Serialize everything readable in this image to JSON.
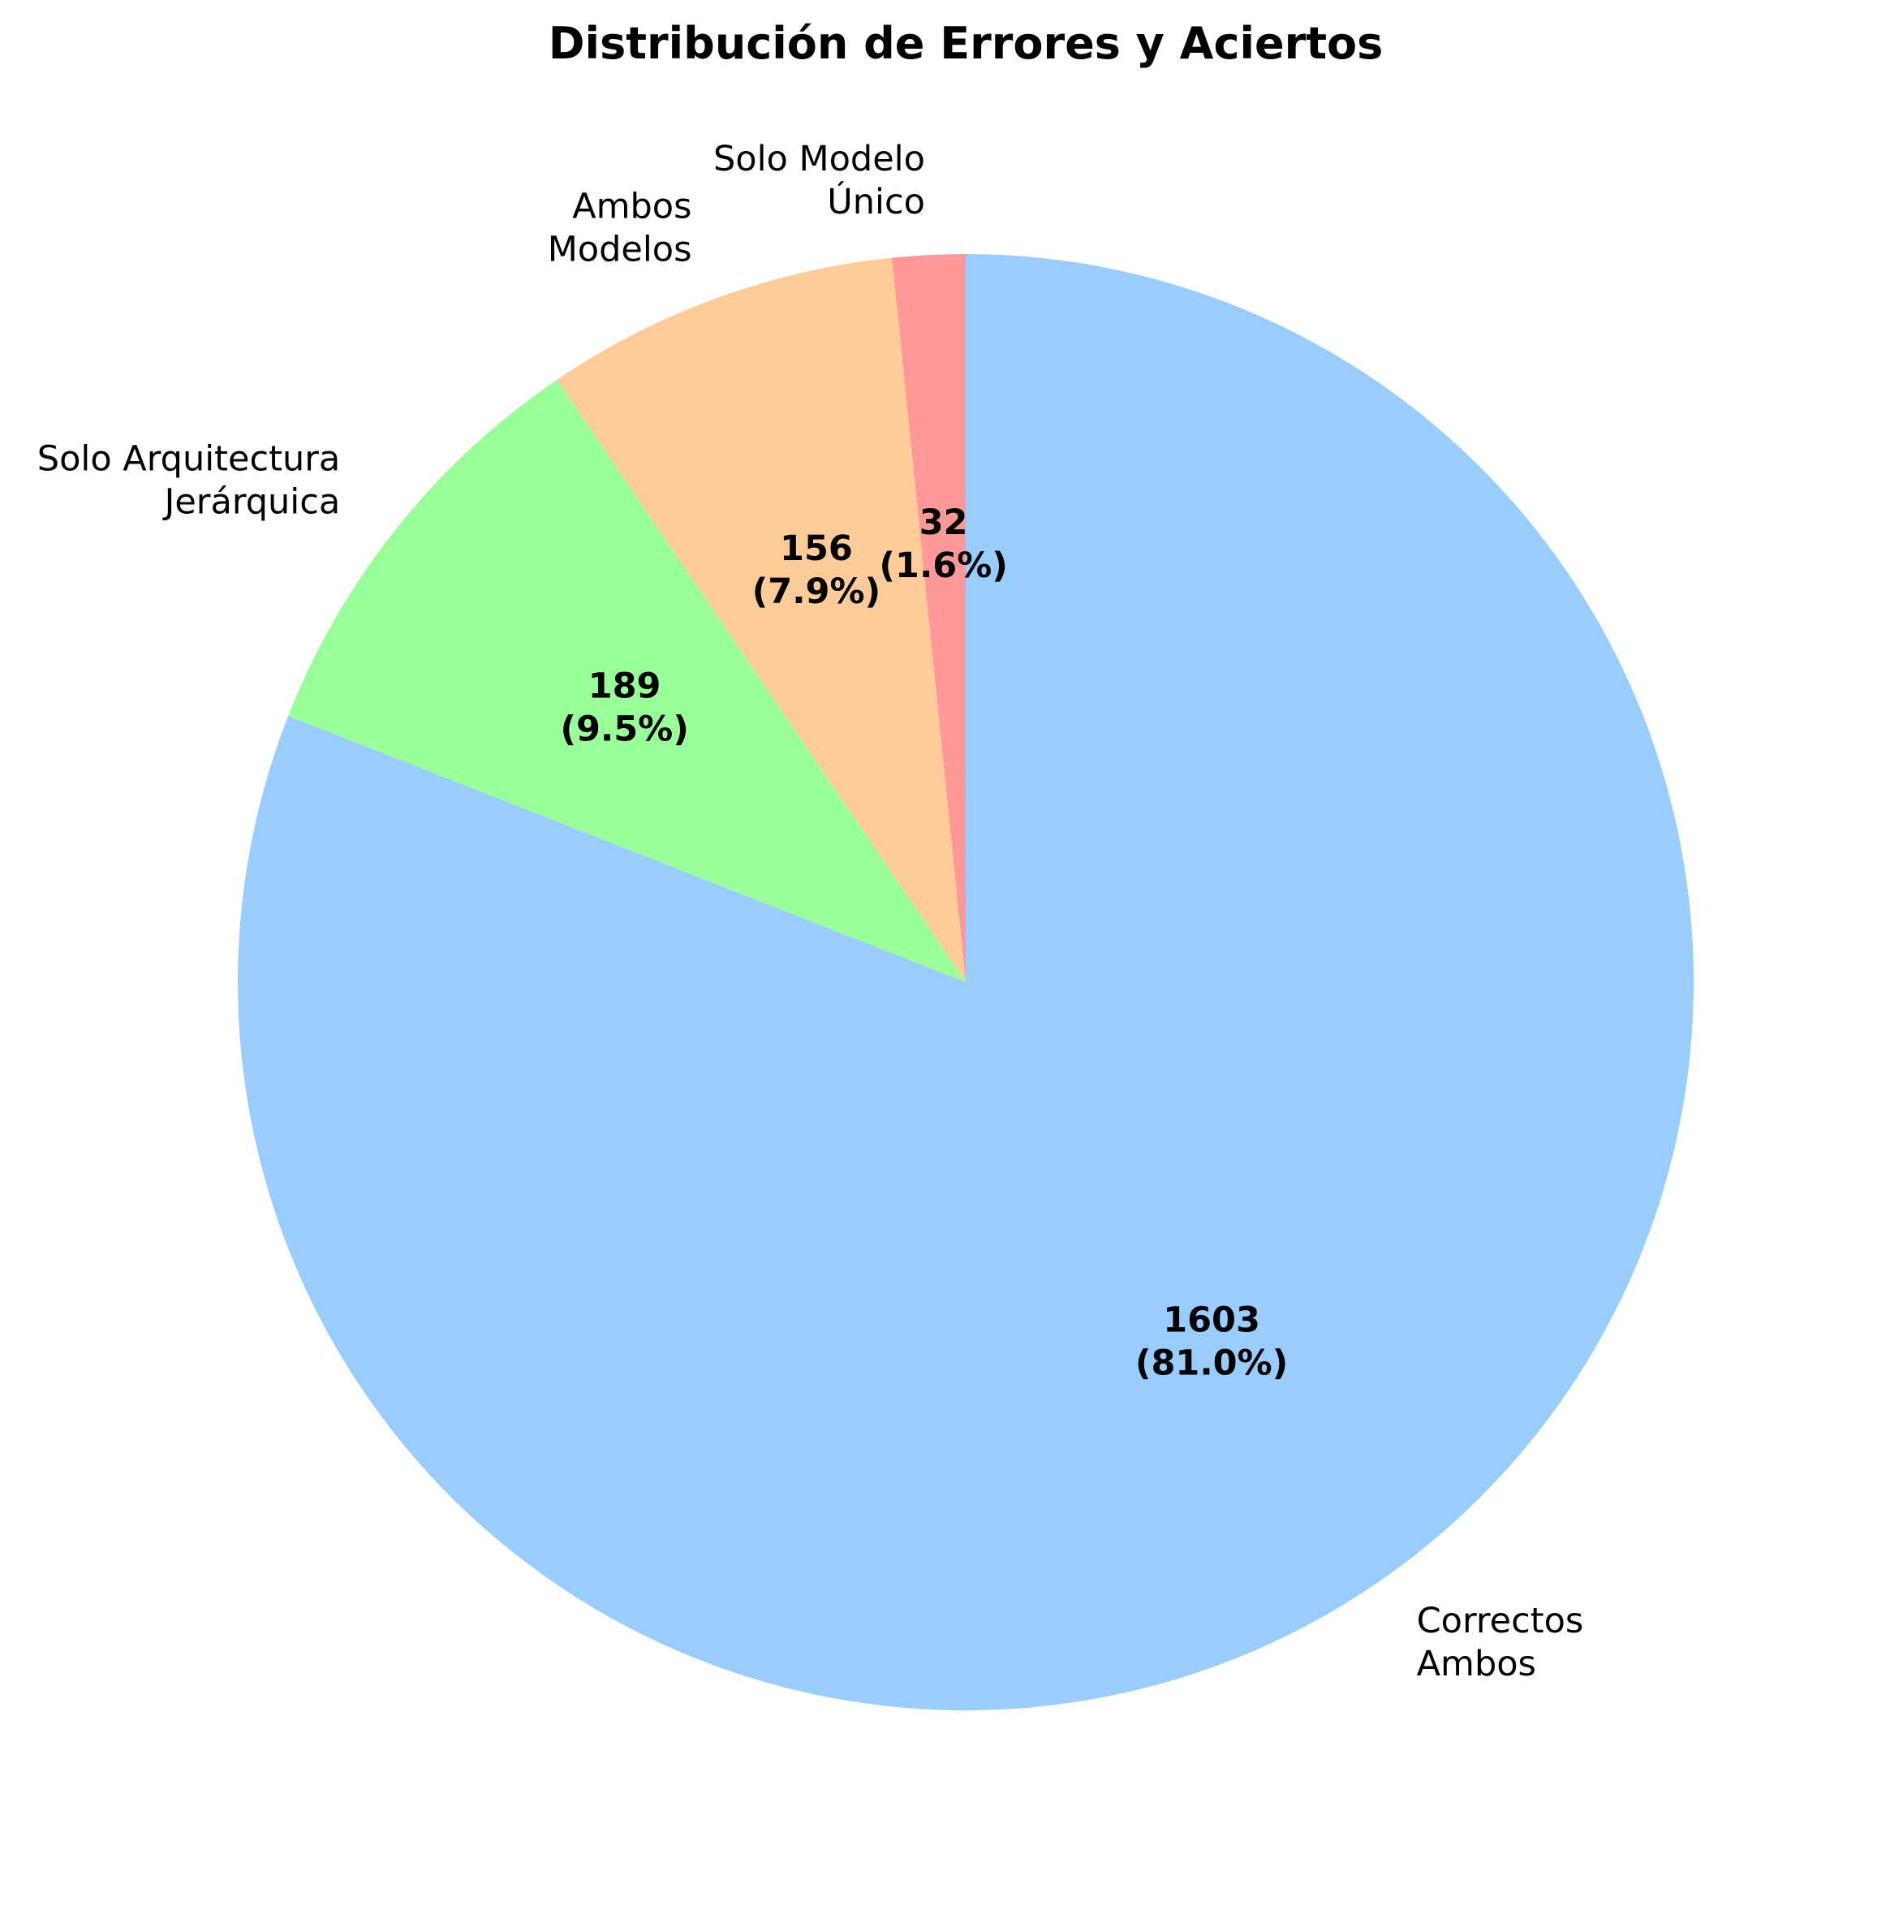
{
  "chart_data": {
    "type": "pie",
    "title": "Distribución de Errores y Aciertos",
    "start_angle_deg": 90,
    "direction": "clockwise",
    "slices": [
      {
        "label_lines": [
          "Correctos",
          "Ambos"
        ],
        "value": 1603,
        "pct_text": "(81.0%)",
        "color": "#99ccff"
      },
      {
        "label_lines": [
          "Solo Arquitectura",
          "Jerárquica"
        ],
        "value": 189,
        "pct_text": "(9.5%)",
        "color": "#99ff99"
      },
      {
        "label_lines": [
          "Ambos",
          "Modelos"
        ],
        "value": 156,
        "pct_text": "(7.9%)",
        "color": "#ffcc99"
      },
      {
        "label_lines": [
          "Solo Modelo",
          "Único"
        ],
        "value": 32,
        "pct_text": "(1.6%)",
        "color": "#ff9999"
      }
    ]
  }
}
